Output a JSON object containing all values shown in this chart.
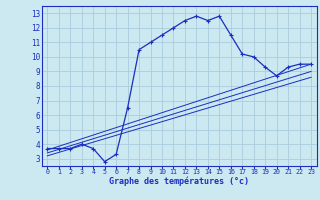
{
  "bg_color": "#cce8f0",
  "grid_color": "#aaccdd",
  "line_color": "#1a2fc0",
  "xlabel": "Graphe des températures (°c)",
  "ylim": [
    2.5,
    13.5
  ],
  "xlim": [
    -0.5,
    23.5
  ],
  "yticks": [
    3,
    4,
    5,
    6,
    7,
    8,
    9,
    10,
    11,
    12,
    13
  ],
  "xticks": [
    0,
    1,
    2,
    3,
    4,
    5,
    6,
    7,
    8,
    9,
    10,
    11,
    12,
    13,
    14,
    15,
    16,
    17,
    18,
    19,
    20,
    21,
    22,
    23
  ],
  "main_line_x": [
    0,
    1,
    2,
    3,
    4,
    5,
    6,
    7,
    8,
    9,
    10,
    11,
    12,
    13,
    14,
    15,
    16,
    17,
    18,
    19,
    20,
    21,
    22,
    23
  ],
  "main_line_y": [
    3.7,
    3.7,
    3.7,
    4.0,
    3.7,
    2.8,
    3.3,
    6.5,
    10.5,
    11.0,
    11.5,
    12.0,
    12.5,
    12.8,
    12.5,
    12.8,
    11.5,
    10.2,
    10.0,
    9.3,
    8.7,
    9.3,
    9.5,
    9.5
  ],
  "reg_lines": [
    {
      "x": [
        0,
        23
      ],
      "y": [
        3.6,
        9.5
      ]
    },
    {
      "x": [
        0,
        23
      ],
      "y": [
        3.4,
        9.0
      ]
    },
    {
      "x": [
        0,
        23
      ],
      "y": [
        3.2,
        8.6
      ]
    }
  ]
}
